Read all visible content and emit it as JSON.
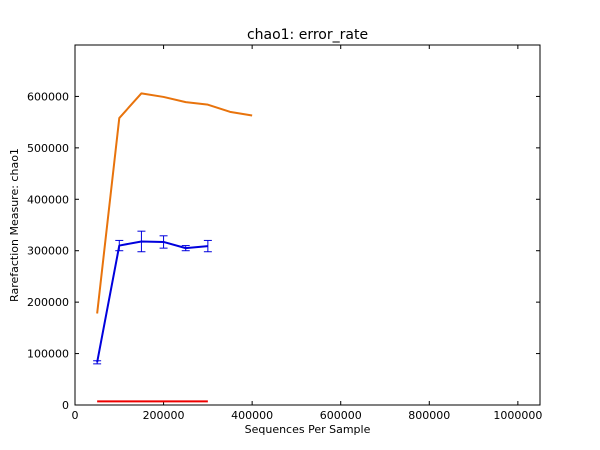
{
  "chart_data": {
    "type": "line",
    "title": "chao1: error_rate",
    "xlabel": "Sequences Per Sample",
    "ylabel": "Rarefaction Measure: chao1",
    "xlim": [
      0,
      1050000
    ],
    "ylim": [
      0,
      700000
    ],
    "xticks": [
      0,
      200000,
      400000,
      600000,
      800000,
      1000000
    ],
    "yticks": [
      0,
      100000,
      200000,
      300000,
      400000,
      500000,
      600000
    ],
    "grid": false,
    "legend": "none",
    "series": [
      {
        "color": "#e8730c",
        "x": [
          50000,
          100000,
          150000,
          200000,
          250000,
          300000,
          350000,
          400000
        ],
        "y": [
          178000,
          558000,
          606000,
          599000,
          589000,
          584000,
          570000,
          563000
        ]
      },
      {
        "color": "#0000dd",
        "x": [
          50000,
          100000,
          150000,
          200000,
          250000,
          300000
        ],
        "y": [
          83000,
          310000,
          318000,
          317000,
          305000,
          309000
        ],
        "err": [
          3000,
          10000,
          20000,
          12000,
          5000,
          11000
        ]
      },
      {
        "color": "#ee0000",
        "x": [
          50000,
          300000
        ],
        "y": [
          7000,
          7000
        ]
      }
    ]
  }
}
